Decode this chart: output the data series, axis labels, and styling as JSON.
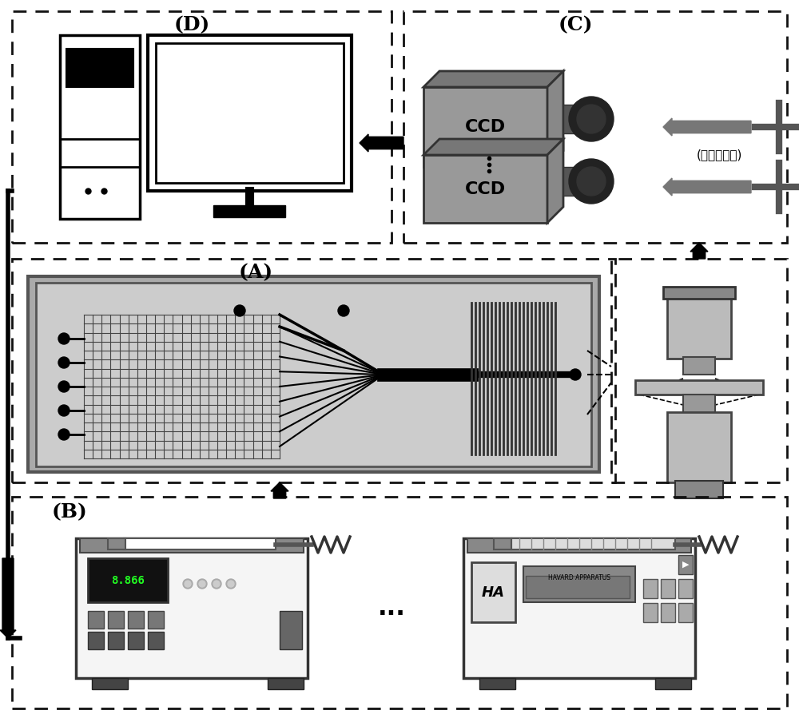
{
  "bg_color": "#ffffff",
  "label_D": "(D)",
  "label_C": "(C)",
  "label_A": "(A)",
  "label_B": "(B)",
  "ccd_text": "CCD",
  "light_text": "(光束、滤镜)",
  "display_val": "8.866",
  "harvard_text": "HAVARD APPARATUS",
  "ha_text": "HA",
  "gray_ccd": "#999999",
  "gray_light": "#aaaaaa",
  "dark": "#111111",
  "mid_gray": "#666666",
  "light_gray": "#cccccc",
  "box_gray": "#888888"
}
